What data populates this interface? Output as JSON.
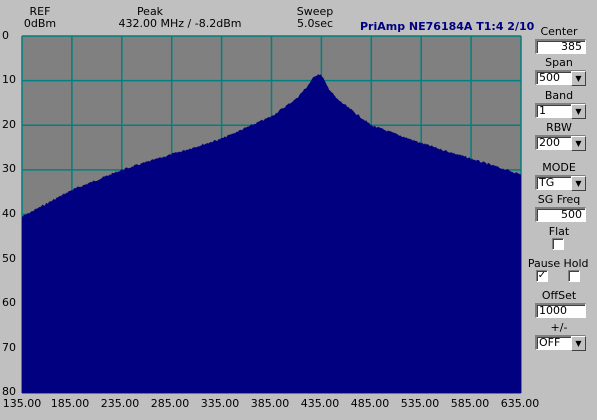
{
  "header": {
    "ref_label": "REF",
    "ref_value": "0dBm",
    "peak_label": "Peak",
    "peak_value": "432.00 MHz / -8.2dBm",
    "sweep_label": "Sweep",
    "sweep_value": "5.0sec",
    "title": "PriAmp NE76184A  T1:4   2/10"
  },
  "colors": {
    "grid": "#008080",
    "plot_bg": "#808080",
    "trace": "#000080",
    "title": "#000080"
  },
  "chart_data": {
    "type": "area",
    "x": [
      135,
      185,
      235,
      285,
      335,
      385,
      410,
      420,
      425,
      428,
      432,
      436,
      440,
      450,
      485,
      535,
      585,
      635
    ],
    "y": [
      40.5,
      34.5,
      30.0,
      26.5,
      23.0,
      18.0,
      14.0,
      11.5,
      10.0,
      9.0,
      8.5,
      9.0,
      11.0,
      14.0,
      20.0,
      24.0,
      27.5,
      31.0
    ],
    "x_ticks": [
      "135.00",
      "185.00",
      "235.00",
      "285.00",
      "335.00",
      "385.00",
      "435.00",
      "485.00",
      "535.00",
      "585.00",
      "635.00"
    ],
    "y_ticks": [
      "0",
      "10",
      "20",
      "30",
      "40",
      "50",
      "60",
      "70",
      "80"
    ],
    "xlim": [
      135,
      635
    ],
    "ylim": [
      0,
      80
    ],
    "y_inverted": true,
    "grid": true
  },
  "controls": {
    "center": {
      "label": "Center",
      "value": "385"
    },
    "span": {
      "label": "Span",
      "value": "500"
    },
    "band": {
      "label": "Band",
      "value": "1"
    },
    "rbw": {
      "label": "RBW",
      "value": "200"
    },
    "mode": {
      "label": "MODE",
      "value": "TG"
    },
    "sg_freq": {
      "label": "SG Freq",
      "value": "500"
    },
    "flat": {
      "label": "Flat",
      "checked": false
    },
    "pause": {
      "label": "Pause",
      "checked": true
    },
    "hold": {
      "label": "Hold",
      "checked": false
    },
    "offset": {
      "label": "OffSet",
      "value": "1000"
    },
    "plusminus": {
      "label": "+/-",
      "value": "OFF"
    }
  }
}
